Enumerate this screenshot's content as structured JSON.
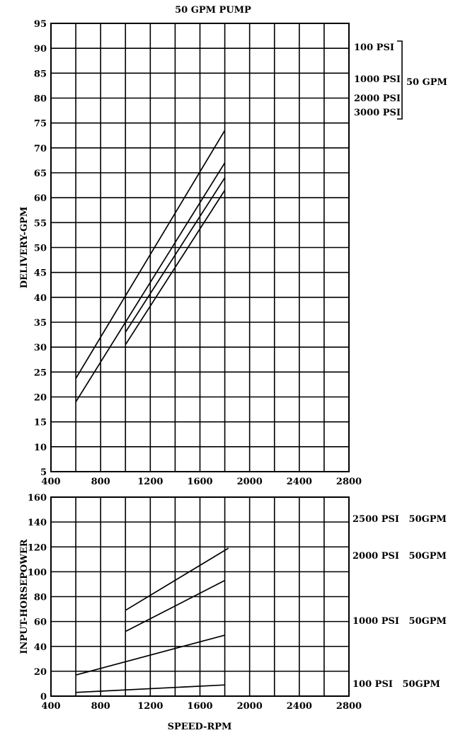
{
  "title": "50 GPM PUMP",
  "chart_data": [
    {
      "type": "line",
      "ylabel": "DELIVERY-GPM",
      "xlim": [
        400,
        2800
      ],
      "ylim": [
        5,
        95
      ],
      "xticks": [
        400,
        800,
        1200,
        1600,
        2000,
        2400,
        2800
      ],
      "yticks": [
        5,
        10,
        15,
        20,
        25,
        30,
        35,
        40,
        45,
        50,
        55,
        60,
        65,
        70,
        75,
        80,
        85,
        90,
        95
      ],
      "grid": true,
      "series": [
        {
          "name": "100 PSI",
          "x": [
            600,
            1800
          ],
          "y": [
            23.7,
            73.5
          ]
        },
        {
          "name": "1000 PSI",
          "x": [
            600,
            1800
          ],
          "y": [
            19,
            67
          ]
        },
        {
          "name": "2000 PSI",
          "x": [
            1000,
            1800
          ],
          "y": [
            33,
            64
          ]
        },
        {
          "name": "3000 PSI",
          "x": [
            1000,
            1800
          ],
          "y": [
            30.5,
            61.5
          ]
        }
      ],
      "legend": {
        "entries": [
          "100 PSI",
          "1000 PSI",
          "2000 PSI",
          "3000 PSI"
        ],
        "group_label": "50 GPM",
        "position": "right"
      }
    },
    {
      "type": "line",
      "xlabel": "SPEED-RPM",
      "ylabel": "INPUT-HORSEPOWER",
      "xlim": [
        400,
        2800
      ],
      "ylim": [
        0,
        160
      ],
      "xticks": [
        400,
        800,
        1200,
        1600,
        2000,
        2400,
        2800
      ],
      "yticks": [
        0,
        20,
        40,
        60,
        80,
        100,
        120,
        140,
        160
      ],
      "grid": true,
      "series": [
        {
          "name": "2500 PSI   50GPM",
          "x": [
            1000,
            1830
          ],
          "y": [
            69,
            119
          ]
        },
        {
          "name": "2000 PSI   50GPM",
          "x": [
            1000,
            1800
          ],
          "y": [
            52,
            93
          ]
        },
        {
          "name": "1000 PSI   50GPM",
          "x": [
            600,
            1800
          ],
          "y": [
            17,
            49
          ]
        },
        {
          "name": "100 PSI   50GPM",
          "x": [
            600,
            1800
          ],
          "y": [
            3,
            9
          ]
        }
      ],
      "legend": {
        "entries": [
          "2500 PSI   50GPM",
          "2000 PSI   50GPM",
          "1000 PSI   50GPM",
          "100 PSI   50GPM"
        ],
        "position": "right"
      }
    }
  ]
}
